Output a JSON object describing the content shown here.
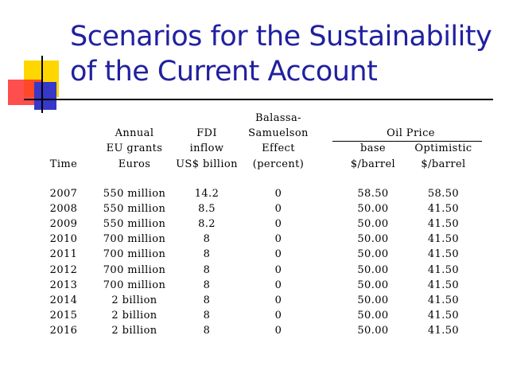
{
  "title_line1": "Scenarios for the Sustainability",
  "title_line2": "of the Current Account",
  "headers": {
    "time": "Time",
    "grants": [
      "Annual",
      "EU grants",
      "Euros"
    ],
    "fdi": [
      "FDI",
      "inflow",
      "US$ billion"
    ],
    "balassa": [
      "Balassa-",
      "Samuelson",
      "Effect",
      "(percent)"
    ],
    "oil_price": "Oil Price",
    "base": [
      "base",
      "$/barrel"
    ],
    "optimistic": [
      "Optimistic",
      "$/barrel"
    ]
  },
  "rows": [
    {
      "year": "2007",
      "grants": "550 million",
      "fdi": "14.2",
      "balassa": "0",
      "base": "58.50",
      "optimistic": "58.50"
    },
    {
      "year": "2008",
      "grants": "550 million",
      "fdi": "8.5",
      "balassa": "0",
      "base": "50.00",
      "optimistic": "41.50"
    },
    {
      "year": "2009",
      "grants": "550 million",
      "fdi": "8.2",
      "balassa": "0",
      "base": "50.00",
      "optimistic": "41.50"
    },
    {
      "year": "2010",
      "grants": "700 million",
      "fdi": "8",
      "balassa": "0",
      "base": "50.00",
      "optimistic": "41.50"
    },
    {
      "year": "2011",
      "grants": "700 million",
      "fdi": "8",
      "balassa": "0",
      "base": "50.00",
      "optimistic": "41.50"
    },
    {
      "year": "2012",
      "grants": "700 million",
      "fdi": "8",
      "balassa": "0",
      "base": "50.00",
      "optimistic": "41.50"
    },
    {
      "year": "2013",
      "grants": "700 million",
      "fdi": "8",
      "balassa": "0",
      "base": "50.00",
      "optimistic": "41.50"
    },
    {
      "year": "2014",
      "grants": "2 billion",
      "fdi": "8",
      "balassa": "0",
      "base": "50.00",
      "optimistic": "41.50"
    },
    {
      "year": "2015",
      "grants": "2 billion",
      "fdi": "8",
      "balassa": "0",
      "base": "50.00",
      "optimistic": "41.50"
    },
    {
      "year": "2016",
      "grants": "2 billion",
      "fdi": "8",
      "balassa": "0",
      "base": "50.00",
      "optimistic": "41.50"
    }
  ]
}
